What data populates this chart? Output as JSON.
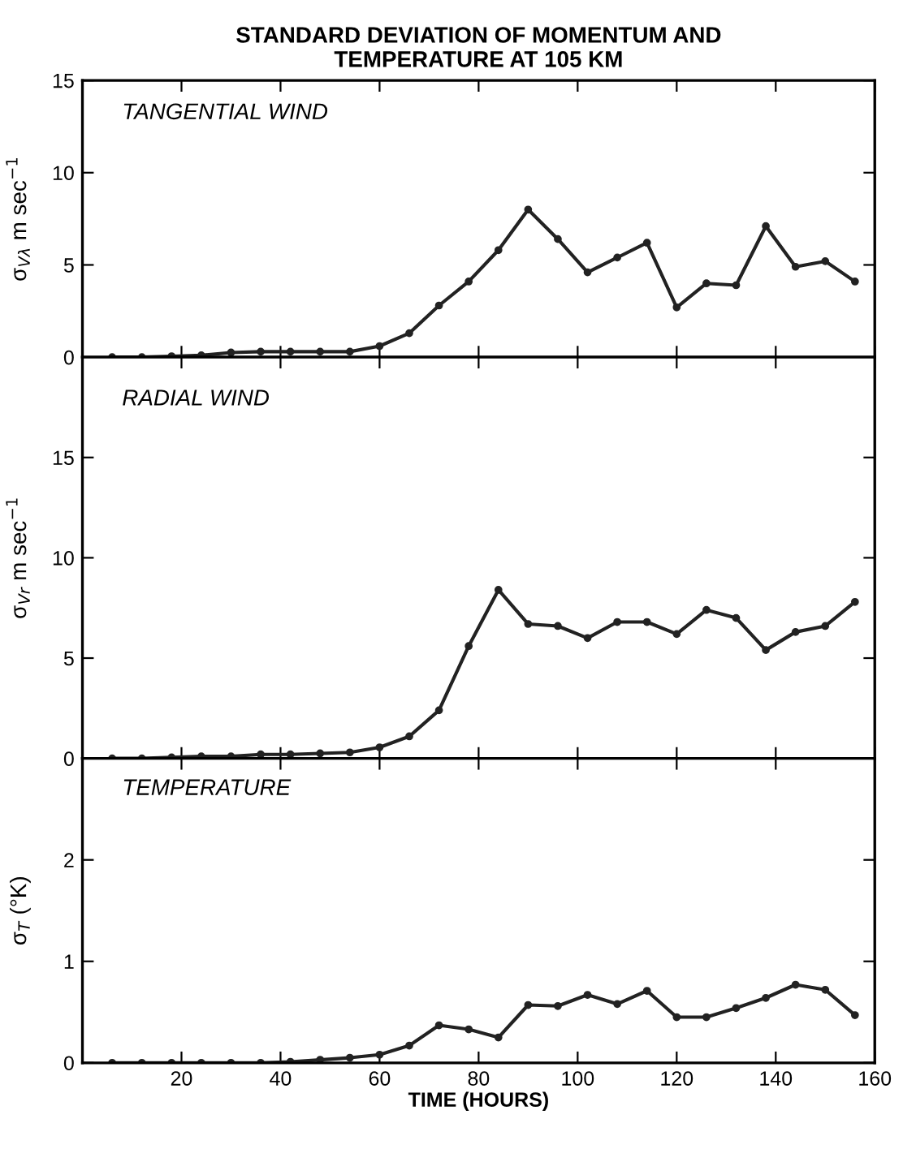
{
  "chart_data": [
    {
      "type": "line",
      "title": "STANDARD DEVIATION OF MOMENTUM AND\nTEMPERATURE AT 105 KM",
      "ylabel": "σ$_{Vλ}$ m sec$^{−1}$",
      "annotations": [
        "TANGENTIAL WIND"
      ],
      "marker": "circle",
      "line_style": "solid",
      "grid": false,
      "tick_labels": "y",
      "x": [
        6,
        12,
        18,
        24,
        30,
        36,
        42,
        48,
        54,
        60,
        66,
        72,
        78,
        84,
        90,
        96,
        102,
        108,
        114,
        120,
        126,
        132,
        138,
        144,
        150,
        156
      ],
      "series": [
        {
          "color": "#222222",
          "values": [
            0,
            0,
            0.05,
            0.1,
            0.25,
            0.3,
            0.3,
            0.3,
            0.3,
            0.6,
            1.3,
            2.8,
            4.1,
            5.8,
            8.0,
            6.4,
            4.6,
            5.4,
            6.2,
            2.7,
            4.0,
            3.9,
            7.1,
            4.9,
            5.2,
            4.1
          ]
        }
      ],
      "xlim": [
        0,
        160
      ],
      "ylim": [
        0,
        15
      ],
      "yticks": [
        0,
        5,
        10,
        15
      ]
    },
    {
      "type": "line",
      "ylabel": "σ$_{Vr}$ m sec$^{−1}$",
      "annotations": [
        "RADIAL WIND"
      ],
      "marker": "circle",
      "line_style": "solid",
      "grid": false,
      "tick_labels": "y",
      "x": [
        6,
        12,
        18,
        24,
        30,
        36,
        42,
        48,
        54,
        60,
        66,
        72,
        78,
        84,
        90,
        96,
        102,
        108,
        114,
        120,
        126,
        132,
        138,
        144,
        150,
        156
      ],
      "series": [
        {
          "color": "#222222",
          "values": [
            0,
            0,
            0.05,
            0.1,
            0.1,
            0.2,
            0.2,
            0.25,
            0.3,
            0.55,
            1.1,
            2.4,
            5.6,
            8.4,
            6.7,
            6.6,
            6.0,
            6.8,
            6.8,
            6.2,
            7.4,
            7.0,
            5.4,
            6.3,
            6.6,
            7.8
          ]
        }
      ],
      "xlim": [
        0,
        160
      ],
      "ylim": [
        0,
        20
      ],
      "yticks": [
        0,
        5,
        10,
        15
      ]
    },
    {
      "type": "line",
      "xlabel": "TIME (HOURS)",
      "ylabel": "σ$_{T}$ (°K)",
      "annotations": [
        "TEMPERATURE"
      ],
      "marker": "circle",
      "line_style": "solid",
      "grid": false,
      "x": [
        6,
        12,
        18,
        24,
        30,
        36,
        42,
        48,
        54,
        60,
        66,
        72,
        78,
        84,
        90,
        96,
        102,
        108,
        114,
        120,
        126,
        132,
        138,
        144,
        150,
        156
      ],
      "series": [
        {
          "color": "#222222",
          "values": [
            0,
            0,
            0,
            0,
            0,
            0,
            0.01,
            0.03,
            0.05,
            0.08,
            0.17,
            0.37,
            0.33,
            0.25,
            0.57,
            0.56,
            0.67,
            0.58,
            0.71,
            0.45,
            0.45,
            0.54,
            0.64,
            0.77,
            0.72,
            0.47
          ]
        }
      ],
      "xlim": [
        0,
        160
      ],
      "ylim": [
        0,
        3
      ],
      "xticks": [
        20,
        40,
        60,
        80,
        100,
        120,
        140,
        160
      ],
      "yticks": [
        0,
        1,
        2
      ]
    }
  ]
}
